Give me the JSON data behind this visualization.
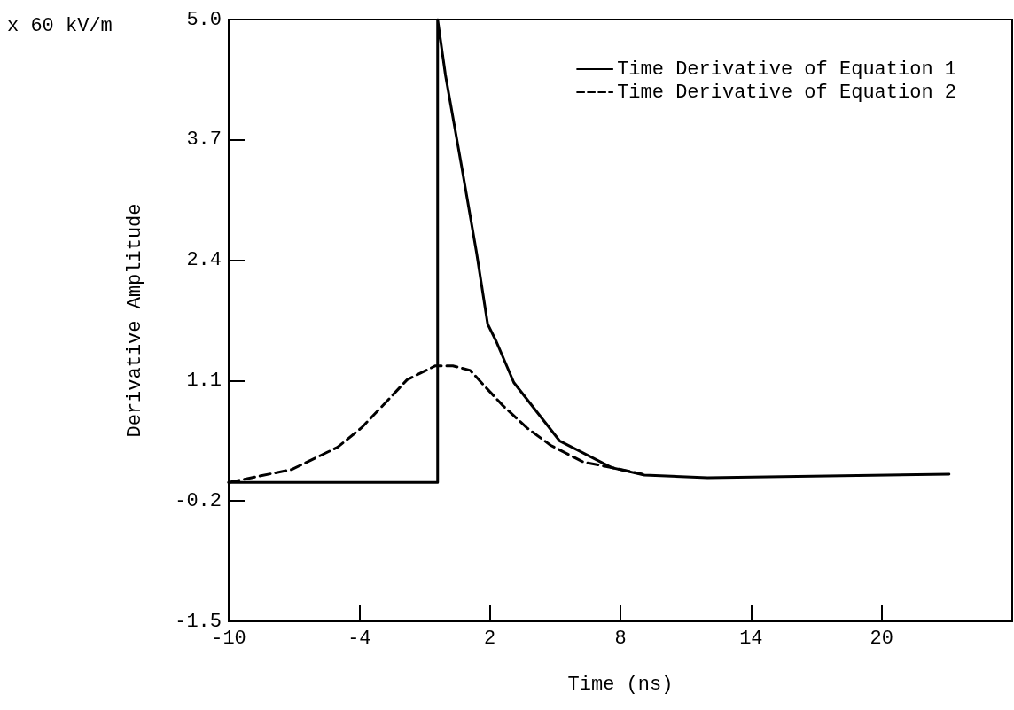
{
  "chart_data": {
    "type": "line",
    "xlabel": "Time (ns)",
    "ylabel": "Derivative Amplitude",
    "annotations": [
      "x 60 kV/m"
    ],
    "xlim": [
      -10,
      26
    ],
    "xticks": [
      -10,
      -4,
      2,
      8,
      14,
      20
    ],
    "ylim": [
      -1.5,
      5.0
    ],
    "yticks": [
      {
        "value": -1.5,
        "label": "-1.5"
      },
      {
        "value": -0.2,
        "label": "-0.2"
      },
      {
        "value": 1.1,
        "label": "1.1"
      },
      {
        "value": 2.4,
        "label": "2.4"
      },
      {
        "value": 3.7,
        "label": "3.7"
      },
      {
        "value": 5.0,
        "label": "5.0"
      }
    ],
    "grid": false,
    "legend": "top right",
    "marker": "none",
    "series": [
      {
        "name": "Time Derivative of Equation 1",
        "color": "#000000",
        "line_style": "solid",
        "x": [
          -10,
          -0.4,
          -0.4,
          -0.04,
          0.69,
          1.39,
          1.9,
          2.3,
          3.1,
          5.2,
          7.6,
          9.1,
          12,
          23.1
        ],
        "values": [
          0,
          0,
          5.0,
          4.4,
          3.43,
          2.48,
          1.71,
          1.52,
          1.08,
          0.45,
          0.16,
          0.08,
          0.05,
          0.09
        ]
      },
      {
        "name": "Time Derivative of Equation 2",
        "color": "#000000",
        "line_style": "dashed",
        "x": [
          -10,
          -7.1,
          -5.0,
          -3.9,
          -2.8,
          -1.8,
          -0.5,
          0.3,
          1.1,
          1.8,
          2.6,
          3.7,
          4.8,
          6.3,
          7.6,
          9
        ],
        "values": [
          0,
          0.14,
          0.38,
          0.59,
          0.86,
          1.11,
          1.26,
          1.26,
          1.21,
          1.03,
          0.83,
          0.59,
          0.4,
          0.22,
          0.16,
          0.09
        ]
      }
    ]
  }
}
